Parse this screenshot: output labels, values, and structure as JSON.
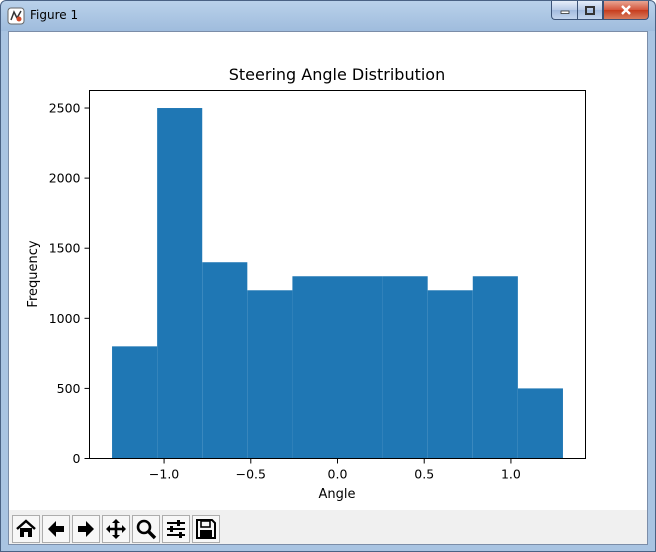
{
  "window": {
    "title": "Figure 1"
  },
  "toolbar": {
    "buttons": [
      {
        "name": "home-button",
        "icon": "home-icon"
      },
      {
        "name": "back-button",
        "icon": "arrow-left-icon"
      },
      {
        "name": "forward-button",
        "icon": "arrow-right-icon"
      },
      {
        "name": "pan-button",
        "icon": "move-icon"
      },
      {
        "name": "zoom-button",
        "icon": "magnifier-icon"
      },
      {
        "name": "configure-subplots-button",
        "icon": "sliders-icon"
      },
      {
        "name": "save-button",
        "icon": "floppy-disk-icon"
      }
    ]
  },
  "chart_data": {
    "type": "bar",
    "title": "Steering Angle Distribution",
    "xlabel": "Angle",
    "ylabel": "Frequency",
    "bar_color": "#1f77b4",
    "bins": [
      {
        "x0": -1.3,
        "x1": -1.04,
        "value": 800
      },
      {
        "x0": -1.04,
        "x1": -0.78,
        "value": 2500
      },
      {
        "x0": -0.78,
        "x1": -0.52,
        "value": 1400
      },
      {
        "x0": -0.52,
        "x1": -0.26,
        "value": 1200
      },
      {
        "x0": -0.26,
        "x1": 0.0,
        "value": 1300
      },
      {
        "x0": 0.0,
        "x1": 0.26,
        "value": 1300
      },
      {
        "x0": 0.26,
        "x1": 0.52,
        "value": 1300
      },
      {
        "x0": 0.52,
        "x1": 0.78,
        "value": 1200
      },
      {
        "x0": 0.78,
        "x1": 1.04,
        "value": 1300
      },
      {
        "x0": 1.04,
        "x1": 1.3,
        "value": 500
      }
    ],
    "xlim": [
      -1.43,
      1.43
    ],
    "ylim": [
      0,
      2625
    ],
    "xticks": [
      -1.0,
      -0.5,
      0.0,
      0.5,
      1.0
    ],
    "xtick_labels": [
      "−1.0",
      "−0.5",
      "0.0",
      "0.5",
      "1.0"
    ],
    "yticks": [
      0,
      500,
      1000,
      1500,
      2000,
      2500
    ],
    "ytick_labels": [
      "0",
      "500",
      "1000",
      "1500",
      "2000",
      "2500"
    ],
    "grid": false,
    "legend": "none"
  }
}
